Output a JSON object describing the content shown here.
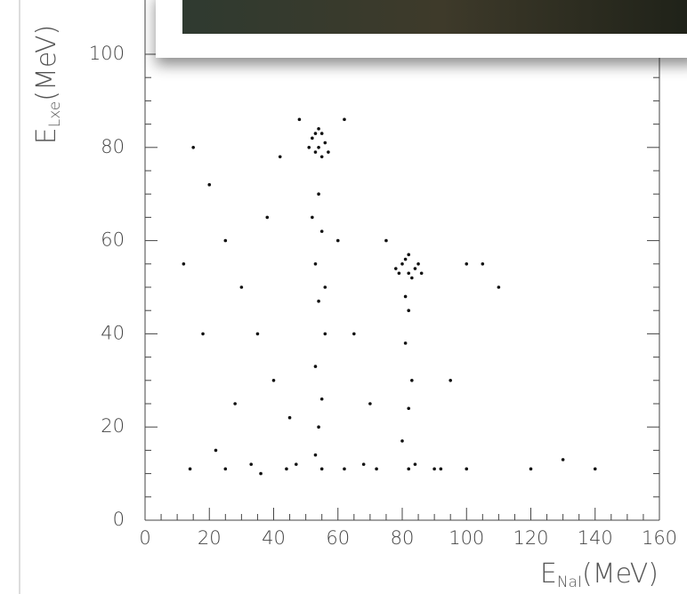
{
  "chart_data": {
    "type": "scatter",
    "xlabel": {
      "main": "E",
      "sub": "NaI",
      "unit": "(MeV)"
    },
    "ylabel": {
      "main": "E",
      "sub": "Lxe",
      "unit": "(MeV)"
    },
    "color": "#111111",
    "x": [
      52,
      54,
      55,
      53,
      56,
      54,
      51,
      57,
      55,
      53,
      80,
      82,
      84,
      81,
      83,
      79,
      85,
      82,
      78,
      86,
      54,
      55,
      53,
      54,
      56,
      53,
      55,
      54,
      53,
      55,
      52,
      56,
      82,
      81,
      83,
      82,
      80,
      84,
      82,
      81,
      15,
      20,
      25,
      30,
      35,
      40,
      45,
      18,
      28,
      38,
      42,
      12,
      22,
      33,
      47,
      60,
      65,
      70,
      68,
      75,
      90,
      95,
      100,
      105,
      110,
      120,
      130,
      140,
      62,
      48,
      14,
      25,
      36,
      44,
      62,
      72,
      92,
      100
    ],
    "y": [
      82,
      80,
      83,
      79,
      81,
      84,
      80,
      79,
      78,
      83,
      55,
      53,
      54,
      56,
      52,
      53,
      55,
      57,
      54,
      53,
      70,
      62,
      55,
      47,
      40,
      33,
      26,
      20,
      14,
      11,
      65,
      50,
      45,
      38,
      30,
      24,
      17,
      12,
      11,
      48,
      80,
      72,
      60,
      50,
      40,
      30,
      22,
      40,
      25,
      65,
      78,
      55,
      15,
      12,
      12,
      60,
      40,
      25,
      12,
      60,
      11,
      30,
      55,
      55,
      50,
      11,
      13,
      11,
      86,
      86,
      11,
      11,
      10,
      11,
      11,
      11,
      11,
      11
    ],
    "xlim": [
      0,
      160
    ],
    "ylim": [
      0,
      100
    ],
    "xticks": [
      0,
      20,
      40,
      60,
      80,
      100,
      120,
      140,
      160
    ],
    "yticks": [
      0,
      20,
      40,
      60,
      80,
      100
    ]
  }
}
